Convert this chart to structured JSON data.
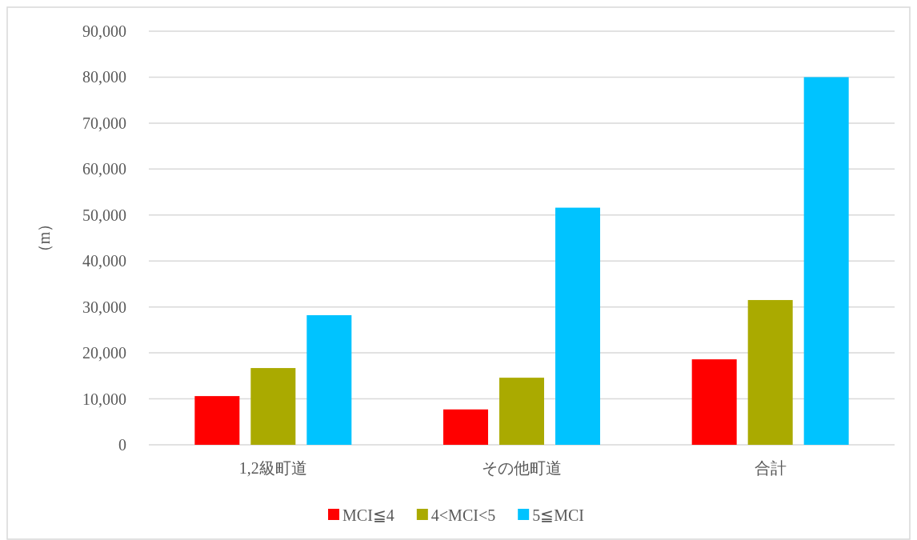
{
  "chart_data": {
    "type": "bar",
    "ylabel": "（m）",
    "categories": [
      "1,2級町道",
      "その他町道",
      "合計"
    ],
    "series": [
      {
        "name": "MCI≦4",
        "color": "#ff0000",
        "values": [
          10600,
          7700,
          18600
        ]
      },
      {
        "name": "4<MCI<5",
        "color": "#aaaa00",
        "values": [
          16700,
          14600,
          31500
        ]
      },
      {
        "name": "5≦MCI",
        "color": "#00c3ff",
        "values": [
          28200,
          51600,
          80000
        ]
      }
    ],
    "ylim": [
      0,
      90000
    ],
    "yticks": [
      {
        "value": 0,
        "label": "0"
      },
      {
        "value": 10000,
        "label": "10,000"
      },
      {
        "value": 20000,
        "label": "20,000"
      },
      {
        "value": 30000,
        "label": "30,000"
      },
      {
        "value": 40000,
        "label": "40,000"
      },
      {
        "value": 50000,
        "label": "50,000"
      },
      {
        "value": 60000,
        "label": "60,000"
      },
      {
        "value": 70000,
        "label": "70,000"
      },
      {
        "value": 80000,
        "label": "80,000"
      },
      {
        "value": 90000,
        "label": "90,000"
      }
    ],
    "grid": "y",
    "legend": "bottom"
  }
}
